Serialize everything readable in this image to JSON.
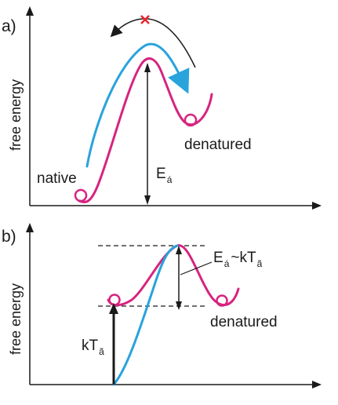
{
  "panels": [
    {
      "label": "a)",
      "y_axis_label": "free energy",
      "annotations": {
        "native": "native",
        "denatured": "denatured",
        "barrier_main": "E",
        "barrier_sub": "á"
      }
    },
    {
      "label": "b)",
      "y_axis_label": "free energy",
      "annotations": {
        "barrier_main": "E",
        "barrier_sub": "á",
        "approx": "~kT",
        "approx_sub": "ã",
        "thermal_main": "kT",
        "thermal_sub": "ã",
        "denatured": "denatured"
      }
    }
  ],
  "colors": {
    "energy_curve": "#d6247f",
    "perturbed_curve": "#29a3dc",
    "axes": "#1a1a1a",
    "blocked_mark": "#e8262b"
  }
}
